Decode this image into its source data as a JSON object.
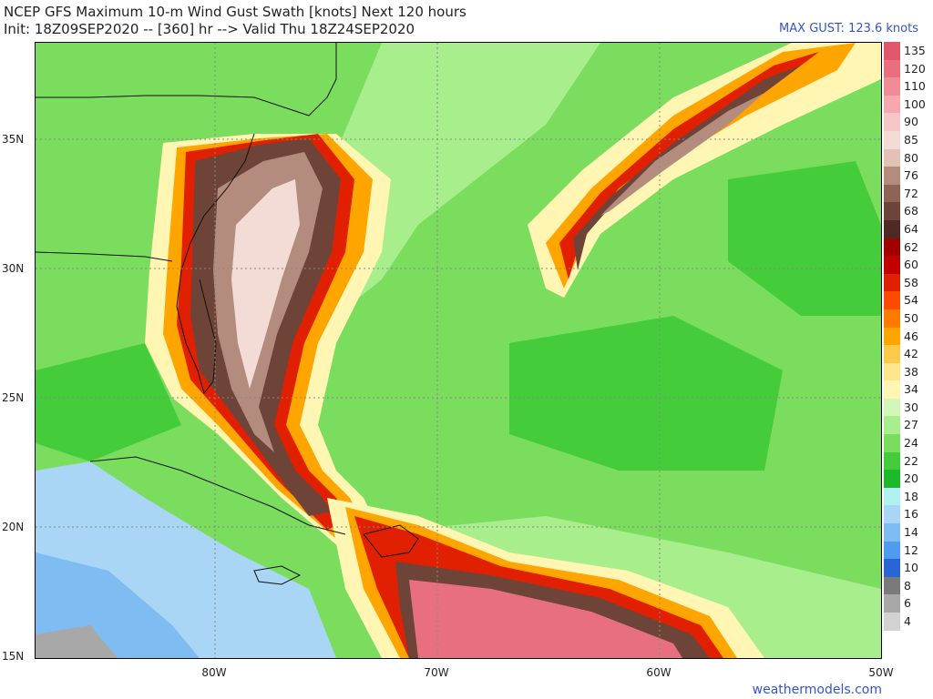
{
  "header": {
    "title_line1": "NCEP GFS Maximum 10-m Wind Gust Swath [knots] Next 120 hours",
    "title_line2": "Init: 18Z09SEP2020 -- [360] hr --> Valid Thu 18Z24SEP2020",
    "max_gust": "MAX GUST: 123.6 knots"
  },
  "axes": {
    "lat_labels": [
      "35N",
      "30N",
      "25N",
      "20N",
      "15N"
    ],
    "lon_labels": [
      "80W",
      "70W",
      "60W",
      "50W"
    ]
  },
  "colorbar": {
    "labels": [
      "135",
      "120",
      "110",
      "100",
      "90",
      "85",
      "80",
      "76",
      "72",
      "68",
      "64",
      "62",
      "60",
      "58",
      "54",
      "50",
      "46",
      "42",
      "38",
      "34",
      "30",
      "27",
      "24",
      "22",
      "20",
      "18",
      "16",
      "14",
      "12",
      "10",
      "8",
      "6",
      "4"
    ],
    "colors": [
      "#e0566a",
      "#e8707e",
      "#f08c96",
      "#f6a8ae",
      "#f8c6c6",
      "#f3dcd5",
      "#e2c2b6",
      "#b48c7e",
      "#8d6456",
      "#6e4438",
      "#4f2a22",
      "#a00000",
      "#c20000",
      "#e02000",
      "#ff4a00",
      "#ff7b00",
      "#ffa500",
      "#ffc94a",
      "#ffe68a",
      "#fff6b4",
      "#d3f7b8",
      "#a8ee8c",
      "#7bdd5e",
      "#44cc3a",
      "#1eb82c",
      "#b0f2f2",
      "#a8d6f4",
      "#7fbcf2",
      "#4f9cee",
      "#2866d6",
      "#7a7a7a",
      "#a8a8a8",
      "#d2d2d2"
    ]
  },
  "footer": {
    "credit": "weathermodels.com"
  },
  "legend_colors": {
    "light_green": "#a8ee8c",
    "green": "#7bdd5e",
    "dark_green": "#44cc3a",
    "yellow": "#fff6b4",
    "orange": "#ffa500",
    "red": "#e02000",
    "dark_red": "#a00000",
    "brown": "#6e4438",
    "tan": "#b48c7e",
    "pink": "#f3dcd5",
    "light_blue": "#a8d6f4",
    "blue": "#7fbcf2",
    "gray": "#a8a8a8"
  }
}
